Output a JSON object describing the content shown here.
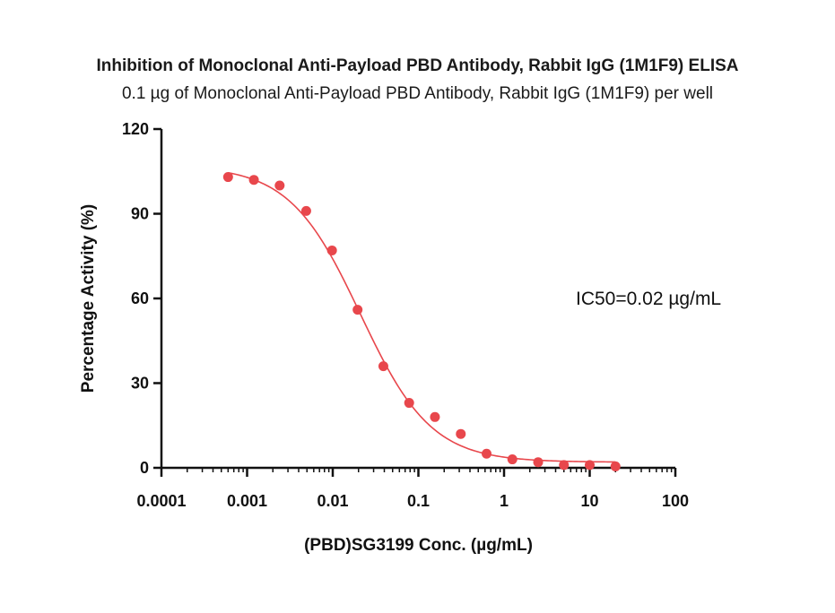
{
  "chart_data": {
    "type": "scatter",
    "title": "Inhibition of Monoclonal Anti-Payload PBD Antibody, Rabbit IgG (1M1F9) ELISA",
    "subtitle": "0.1 µg of Monoclonal Anti-Payload PBD Antibody, Rabbit IgG (1M1F9) per well",
    "xlabel": "(PBD)SG3199 Conc. (µg/mL)",
    "ylabel": "Percentage Activity (%)",
    "x_scale": "log",
    "xlim": [
      0.0001,
      100
    ],
    "ylim": [
      0,
      120
    ],
    "x_ticks": [
      0.0001,
      0.001,
      0.01,
      0.1,
      1,
      10,
      100
    ],
    "x_tick_labels": [
      "0.0001",
      "0.001",
      "0.01",
      "0.1",
      "1",
      "10",
      "100"
    ],
    "y_ticks": [
      0,
      30,
      60,
      90,
      120
    ],
    "y_tick_labels": [
      "0",
      "30",
      "60",
      "90",
      "120"
    ],
    "grid": false,
    "legend": "none",
    "colors": {
      "series": "#e8474c",
      "axis": "#111111"
    },
    "series": [
      {
        "x": [
          0.0006,
          0.0012,
          0.0024,
          0.0049,
          0.0098,
          0.0195,
          0.039,
          0.078,
          0.156,
          0.3125,
          0.625,
          1.25,
          2.5,
          5,
          10,
          20
        ],
        "y": [
          103,
          102,
          100,
          91,
          77,
          56,
          36,
          23,
          18,
          12,
          5,
          3,
          2,
          1,
          1,
          0.5
        ]
      }
    ],
    "fit": {
      "type": "4PL",
      "top": 107,
      "bottom": 2,
      "ic50": 0.021,
      "hill": 1.05,
      "x_range": [
        0.0006,
        20
      ]
    },
    "annotations": [
      {
        "text": "IC50=0.02 µg/mL"
      }
    ]
  }
}
